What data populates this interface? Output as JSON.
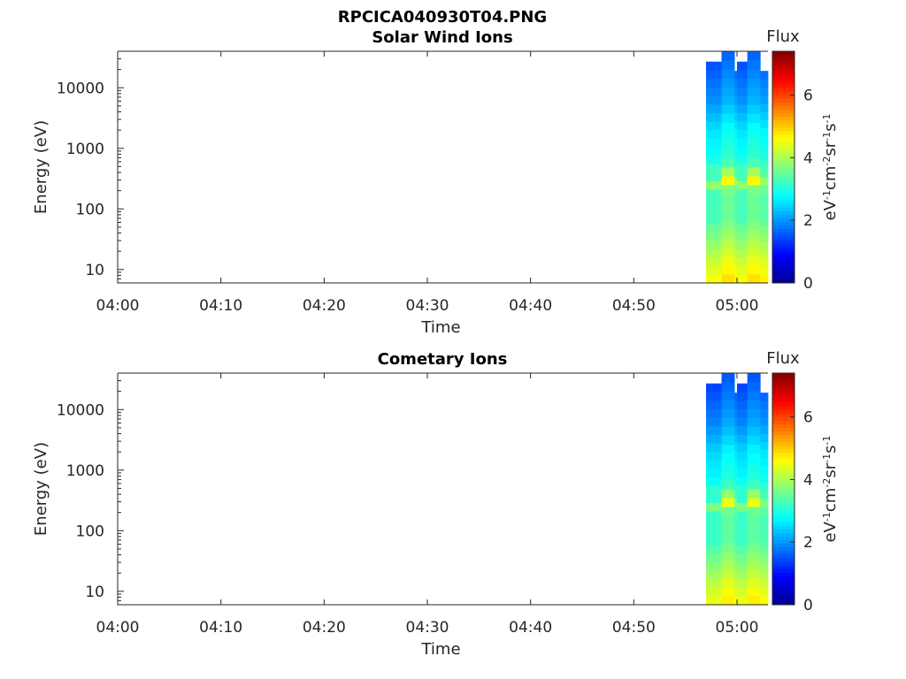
{
  "figure": {
    "title": "RPCICA040930T04.PNG"
  },
  "colormap": [
    "#00008f",
    "#0000ff",
    "#0080ff",
    "#00ffff",
    "#80ff80",
    "#ffff00",
    "#ff8000",
    "#ff0000",
    "#800000"
  ],
  "chart_data": [
    {
      "type": "heatmap",
      "title": "Solar Wind Ions",
      "xlabel": "Time",
      "ylabel": "Energy (eV)",
      "x_ticks": [
        "04:00",
        "04:10",
        "04:20",
        "04:30",
        "04:40",
        "04:50",
        "05:00"
      ],
      "x_range": [
        "04:00",
        "05:03"
      ],
      "y_scale": "log",
      "y_ticks": [
        10,
        100,
        1000,
        10000
      ],
      "y_tick_labels": [
        "10",
        "100",
        "1000",
        "10000"
      ],
      "ylim": [
        6,
        40000
      ],
      "colorbar": {
        "label": "Flux",
        "units": "eV-1cm-2sr-1s-1",
        "range": [
          0,
          7.4
        ],
        "ticks": [
          "0",
          "2",
          "4",
          "6"
        ]
      },
      "columns": [
        {
          "start": "04:57:00",
          "end": "04:58:30",
          "emax": 27000,
          "peak": 3.0
        },
        {
          "start": "04:58:30",
          "end": "04:59:45",
          "emax": 40000,
          "peak": 4.8
        },
        {
          "start": "04:59:45",
          "end": "05:00:00",
          "emax": 19000,
          "peak": 3.8
        },
        {
          "start": "05:00:00",
          "end": "05:01:00",
          "emax": 27000,
          "peak": 3.0
        },
        {
          "start": "05:01:00",
          "end": "05:02:15",
          "emax": 40000,
          "peak": 4.8
        },
        {
          "start": "05:02:15",
          "end": "05:03:00",
          "emax": 19000,
          "peak": 3.8
        }
      ],
      "profile": [
        {
          "e": 7,
          "v": 4.7
        },
        {
          "e": 15,
          "v": 4.3
        },
        {
          "e": 30,
          "v": 3.9
        },
        {
          "e": 70,
          "v": 3.4
        },
        {
          "e": 200,
          "v": 3.4
        },
        {
          "e": 320,
          "v": 4.6
        },
        {
          "e": 450,
          "v": 3.4
        },
        {
          "e": 700,
          "v": 3.0
        },
        {
          "e": 2000,
          "v": 2.7
        },
        {
          "e": 6000,
          "v": 2.1
        },
        {
          "e": 15000,
          "v": 1.8
        },
        {
          "e": 35000,
          "v": 1.5
        }
      ]
    },
    {
      "type": "heatmap",
      "title": "Cometary Ions",
      "xlabel": "Time",
      "ylabel": "Energy (eV)",
      "x_ticks": [
        "04:00",
        "04:10",
        "04:20",
        "04:30",
        "04:40",
        "04:50",
        "05:00"
      ],
      "x_range": [
        "04:00",
        "05:03"
      ],
      "y_scale": "log",
      "y_ticks": [
        10,
        100,
        1000,
        10000
      ],
      "y_tick_labels": [
        "10",
        "100",
        "1000",
        "10000"
      ],
      "ylim": [
        6,
        40000
      ],
      "colorbar": {
        "label": "Flux",
        "units": "eV-1cm-2sr-1s-1",
        "range": [
          0,
          7.4
        ],
        "ticks": [
          "0",
          "2",
          "4",
          "6"
        ]
      },
      "columns": [
        {
          "start": "04:57:00",
          "end": "04:58:30",
          "emax": 27000,
          "peak": 3.0
        },
        {
          "start": "04:58:30",
          "end": "04:59:45",
          "emax": 40000,
          "peak": 4.8
        },
        {
          "start": "04:59:45",
          "end": "05:00:00",
          "emax": 19000,
          "peak": 3.8
        },
        {
          "start": "05:00:00",
          "end": "05:01:00",
          "emax": 27000,
          "peak": 3.0
        },
        {
          "start": "05:01:00",
          "end": "05:02:15",
          "emax": 40000,
          "peak": 4.8
        },
        {
          "start": "05:02:15",
          "end": "05:03:00",
          "emax": 19000,
          "peak": 3.8
        }
      ],
      "profile": [
        {
          "e": 7,
          "v": 4.6
        },
        {
          "e": 15,
          "v": 4.2
        },
        {
          "e": 30,
          "v": 3.8
        },
        {
          "e": 70,
          "v": 3.3
        },
        {
          "e": 200,
          "v": 3.3
        },
        {
          "e": 320,
          "v": 4.4
        },
        {
          "e": 450,
          "v": 3.3
        },
        {
          "e": 700,
          "v": 2.9
        },
        {
          "e": 2000,
          "v": 2.6
        },
        {
          "e": 6000,
          "v": 2.0
        },
        {
          "e": 15000,
          "v": 1.7
        },
        {
          "e": 35000,
          "v": 1.4
        }
      ]
    }
  ]
}
